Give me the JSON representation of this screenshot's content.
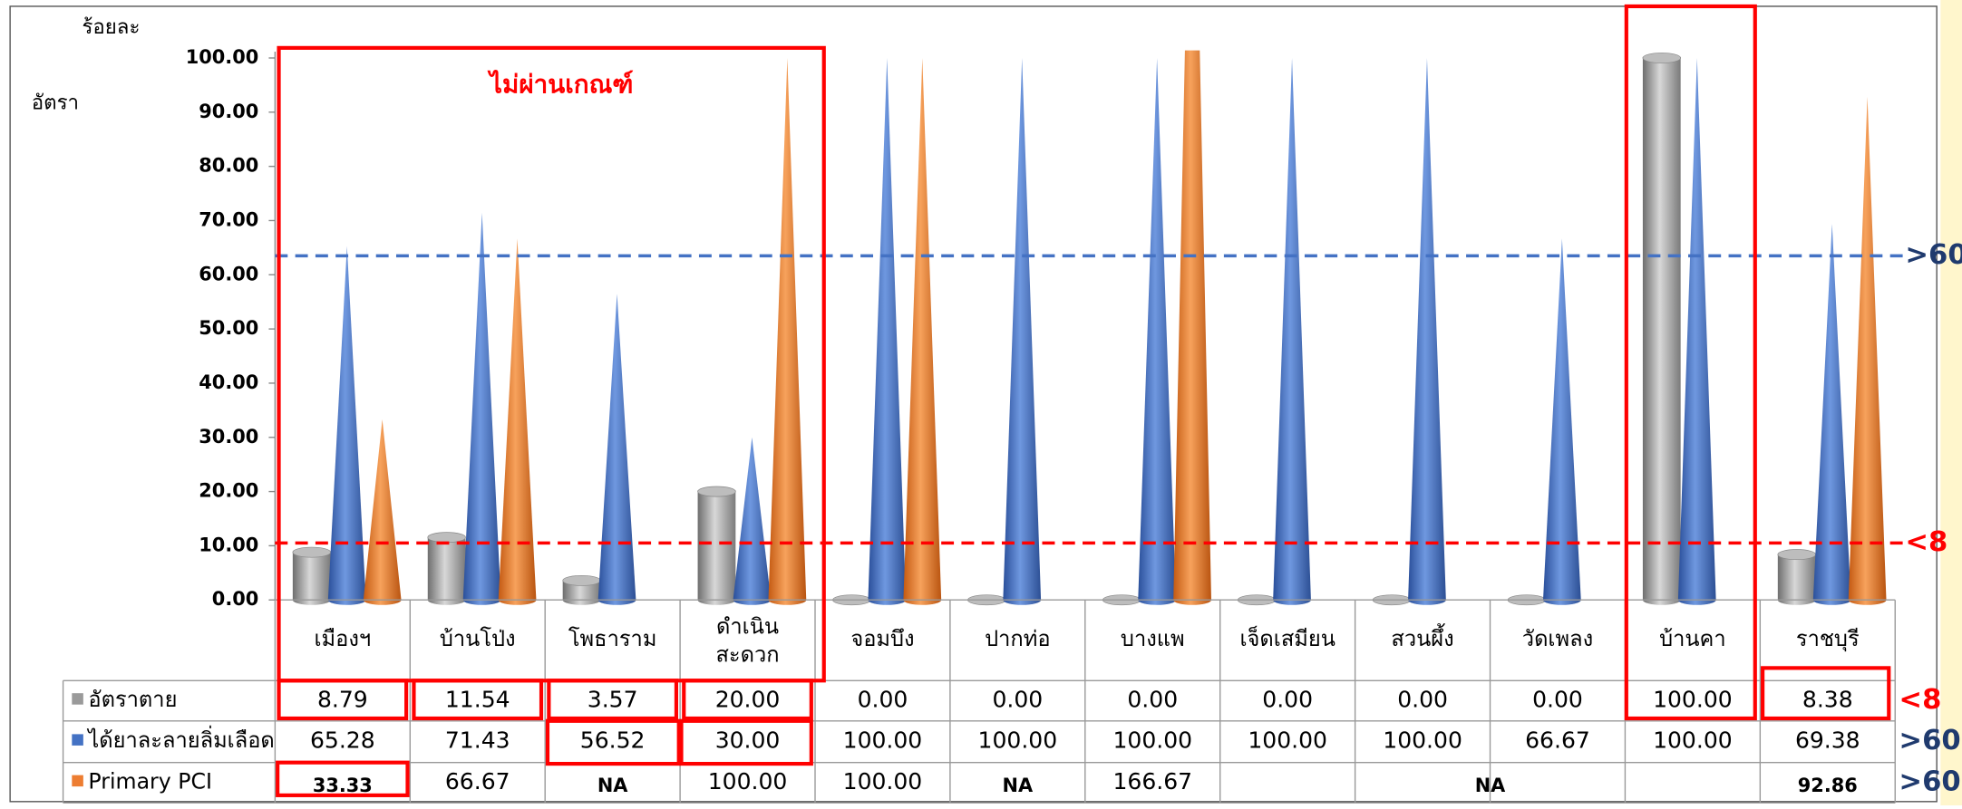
{
  "chart_data": {
    "type": "bar3d",
    "y_label_top": "ร้อยละ",
    "y_label_side": "อัตรา",
    "annotation": "ไม่ผ่านเกณฑ์",
    "categories": [
      "เมืองฯ",
      "บ้านโป่ง",
      "โพธาราม",
      "ดำเนิน\nสะดวก",
      "จอมบึง",
      "ปากท่อ",
      "บางแพ",
      "เจ็ดเสมียน",
      "สวนผึ้ง",
      "วัดเพลง",
      "บ้านคา",
      "ราชบุรี"
    ],
    "series": [
      {
        "name": "อัตราตาย",
        "color": "#9a9a9a",
        "shape": "cylinder",
        "note": "<8",
        "values": [
          8.79,
          11.54,
          3.57,
          20.0,
          0,
          0,
          0,
          0,
          0,
          0,
          100,
          8.38
        ],
        "value_labels": [
          "8.79",
          "11.54",
          "3.57",
          "20.00",
          "0.00",
          "0.00",
          "0.00",
          "0.00",
          "0.00",
          "0.00",
          "100.00",
          "8.38"
        ]
      },
      {
        "name": "ได้ยาละลายลิ่มเลือด",
        "color": "#4472c4",
        "shape": "cone",
        "note": ">60",
        "values": [
          65.28,
          71.43,
          56.52,
          30.0,
          100,
          100,
          100,
          100,
          100,
          66.67,
          100,
          69.38
        ],
        "value_labels": [
          "65.28",
          "71.43",
          "56.52",
          "30.00",
          "100.00",
          "100.00",
          "100.00",
          "100.00",
          "100.00",
          "66.67",
          "100.00",
          "69.38"
        ]
      },
      {
        "name": "Primary PCI",
        "color": "#ed7d31",
        "shape": "cone",
        "note": ">60",
        "values": [
          33.33,
          66.67,
          null,
          100,
          100,
          null,
          166.67,
          null,
          null,
          null,
          null,
          92.86
        ],
        "value_labels": [
          "33.33",
          "66.67",
          "NA",
          "100.00",
          "100.00",
          "NA",
          "166.67",
          "NA",
          null,
          null,
          null,
          "92.86"
        ]
      }
    ],
    "ylim": [
      0,
      100
    ],
    "yticks": [
      {
        "value": 0,
        "label": "0.00"
      },
      {
        "value": 10,
        "label": "10.00"
      },
      {
        "value": 20,
        "label": "20.00"
      },
      {
        "value": 30,
        "label": "30.00"
      },
      {
        "value": 40,
        "label": "40.00"
      },
      {
        "value": 50,
        "label": "50.00"
      },
      {
        "value": 60,
        "label": "60.00"
      },
      {
        "value": 70,
        "label": "70.00"
      },
      {
        "value": 80,
        "label": "80.00"
      },
      {
        "value": 90,
        "label": "90.00"
      },
      {
        "value": 100,
        "label": "100.00"
      }
    ],
    "reference_lines": [
      {
        "value": 63.5,
        "label": ">60",
        "color": "#4472c4"
      },
      {
        "value": 10.5,
        "label": "<8",
        "color": "#ff0000"
      }
    ]
  }
}
